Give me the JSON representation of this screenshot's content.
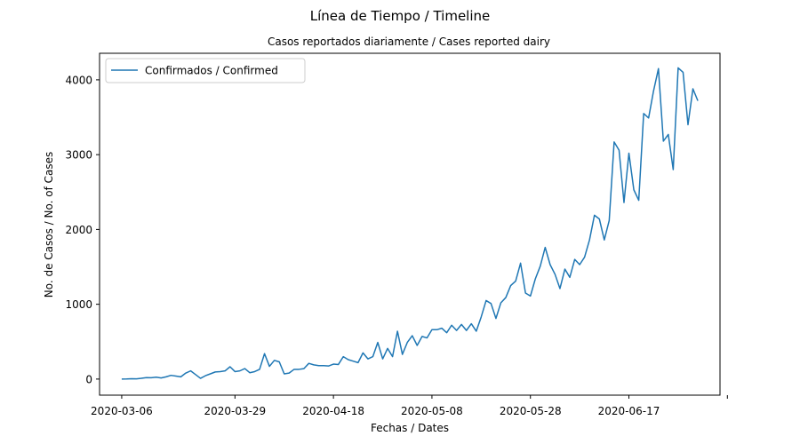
{
  "figure": {
    "suptitle": "Línea de Tiempo / Timeline"
  },
  "chart_data": {
    "type": "line",
    "title": "Casos reportados diariamente / Cases reported dairy",
    "xlabel": "Fechas / Dates",
    "ylabel": "No. de Casos / No. of Cases",
    "x_start": "2020-03-06",
    "x_tick_labels": [
      "2020-03-06",
      "2020-03-29",
      "2020-04-18",
      "2020-05-08",
      "2020-05-28",
      "2020-06-17",
      ""
    ],
    "y_ticks": [
      0,
      1000,
      2000,
      3000,
      4000
    ],
    "y_tick_labels": [
      "0",
      "1000",
      "2000",
      "3000",
      "4000"
    ],
    "ylim": [
      -215,
      4355
    ],
    "grid": false,
    "legend_position": "top-left",
    "series": [
      {
        "name": "Confirmados / Confirmed",
        "color": "#1f77b4",
        "values": [
          0,
          1,
          5,
          3,
          10,
          20,
          18,
          25,
          15,
          30,
          50,
          40,
          30,
          80,
          110,
          60,
          10,
          45,
          70,
          95,
          100,
          110,
          165,
          100,
          110,
          140,
          85,
          100,
          130,
          340,
          170,
          250,
          230,
          70,
          80,
          130,
          130,
          140,
          210,
          190,
          180,
          180,
          175,
          200,
          195,
          300,
          260,
          240,
          220,
          350,
          270,
          300,
          490,
          270,
          410,
          300,
          640,
          330,
          490,
          580,
          450,
          570,
          550,
          660,
          660,
          680,
          620,
          720,
          650,
          730,
          650,
          740,
          640,
          830,
          1050,
          1010,
          810,
          1020,
          1090,
          1250,
          1310,
          1550,
          1150,
          1110,
          1340,
          1510,
          1760,
          1530,
          1400,
          1210,
          1470,
          1360,
          1600,
          1530,
          1630,
          1860,
          2190,
          2140,
          1860,
          2120,
          3170,
          3060,
          2360,
          3020,
          2530,
          2390,
          3550,
          3490,
          3850,
          4150,
          3180,
          3270,
          2800,
          4160,
          4100,
          3400,
          3880,
          3720
        ]
      }
    ]
  }
}
